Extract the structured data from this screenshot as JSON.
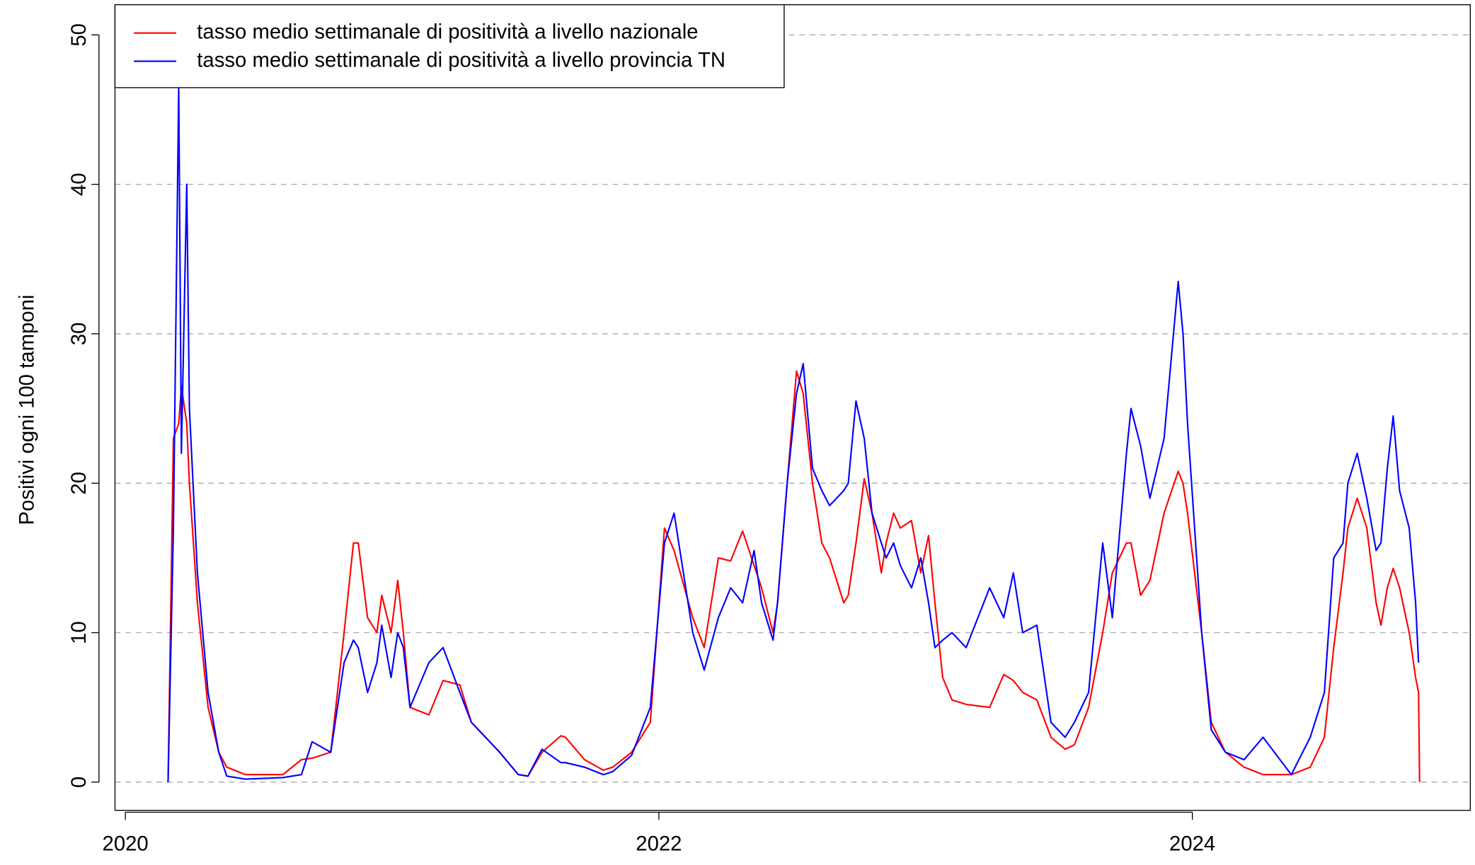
{
  "chart_data": {
    "type": "line",
    "y_label": "Positivi ogni 100 tamponi",
    "x": [
      2020.16,
      2020.18,
      2020.2,
      2020.21,
      2020.23,
      2020.24,
      2020.27,
      2020.31,
      2020.35,
      2020.38,
      2020.45,
      2020.59,
      2020.66,
      2020.7,
      2020.77,
      2020.82,
      2020.855,
      2020.873,
      2020.908,
      2020.943,
      2020.961,
      2020.996,
      2021.021,
      2021.042,
      2021.067,
      2021.138,
      2021.191,
      2021.254,
      2021.297,
      2021.403,
      2021.473,
      2021.509,
      2021.562,
      2021.633,
      2021.65,
      2021.721,
      2021.792,
      2021.827,
      2021.898,
      2021.968,
      2022.021,
      2022.057,
      2022.127,
      2022.17,
      2022.223,
      2022.269,
      2022.314,
      2022.357,
      2022.385,
      2022.428,
      2022.445,
      2022.481,
      2022.516,
      2022.541,
      2022.576,
      2022.611,
      2022.64,
      2022.693,
      2022.71,
      2022.739,
      2022.77,
      2022.799,
      2022.834,
      2022.852,
      2022.88,
      2022.905,
      2022.947,
      2022.982,
      2023.011,
      2023.035,
      2023.064,
      2023.099,
      2023.152,
      2023.24,
      2023.293,
      2023.329,
      2023.364,
      2023.417,
      2023.47,
      2023.523,
      2023.558,
      2023.611,
      2023.664,
      2023.7,
      2023.753,
      2023.77,
      2023.806,
      2023.841,
      2023.894,
      2023.947,
      2023.965,
      2023.982,
      2024.035,
      2024.071,
      2024.124,
      2024.194,
      2024.265,
      2024.371,
      2024.442,
      2024.495,
      2024.53,
      2024.565,
      2024.583,
      2024.618,
      2024.654,
      2024.689,
      2024.707,
      2024.731,
      2024.753,
      2024.777,
      2024.813,
      2024.837,
      2024.848,
      2024.852
    ],
    "series": [
      {
        "name": "tasso medio settimanale di positività a livello nazionale",
        "color": "#ff0000",
        "values": [
          0,
          23,
          24,
          26.5,
          24,
          20,
          12,
          5,
          2,
          1,
          0.5,
          0.5,
          1.5,
          1.6,
          2,
          10,
          16,
          16,
          11,
          10,
          12.5,
          10,
          13.5,
          10,
          5,
          4.5,
          6.8,
          6.5,
          4,
          2,
          0.5,
          0.4,
          2,
          3.1,
          3,
          1.5,
          0.8,
          1,
          2,
          4,
          17,
          15.5,
          11,
          9,
          15,
          14.8,
          16.8,
          14.5,
          13,
          10,
          12,
          20,
          27.5,
          26,
          20,
          16,
          15,
          12,
          12.5,
          16,
          20.3,
          18,
          14,
          16,
          18,
          17,
          17.5,
          14,
          16.5,
          12,
          7,
          5.5,
          5.2,
          5,
          7.2,
          6.8,
          6,
          5.5,
          3,
          2.2,
          2.5,
          5,
          10,
          14,
          16,
          16,
          12.5,
          13.5,
          18,
          20.8,
          20,
          18,
          10,
          4,
          2,
          1,
          0.5,
          0.5,
          1,
          3,
          9,
          14,
          17,
          19,
          17,
          12,
          10.5,
          13,
          14.3,
          13,
          10,
          7,
          6,
          0
        ]
      },
      {
        "name": "tasso medio settimanale di positività a livello provincia TN",
        "color": "#0000ff",
        "values": [
          0,
          17,
          46.5,
          22,
          40,
          25,
          14,
          6,
          2,
          0.4,
          0.2,
          0.3,
          0.5,
          2.7,
          2,
          8,
          9.5,
          9,
          6,
          8,
          10.5,
          7,
          10,
          9,
          5,
          8,
          9,
          6,
          4,
          2,
          0.5,
          0.4,
          2.2,
          1.3,
          1.3,
          1,
          0.5,
          0.7,
          1.8,
          5,
          16,
          18,
          10,
          7.5,
          11,
          13,
          12,
          15.5,
          12,
          9.5,
          12,
          20,
          26,
          28,
          21,
          19.5,
          18.5,
          19.5,
          20,
          25.5,
          23,
          18,
          16,
          15,
          16,
          14.5,
          13,
          15,
          12,
          9,
          9.5,
          10,
          9,
          13,
          11,
          14,
          10,
          10.5,
          4,
          3,
          4,
          6,
          16,
          11,
          22,
          25,
          22.5,
          19,
          23,
          33.5,
          30,
          24,
          10,
          3.5,
          2,
          1.5,
          3,
          0.5,
          3,
          6,
          15,
          16,
          20,
          22,
          19,
          15.5,
          16,
          21,
          24.5,
          19.5,
          17,
          12,
          8,
          null
        ]
      }
    ],
    "xlim": [
      2019.961,
      2025.042
    ],
    "xticks": [
      2020,
      2022,
      2024
    ],
    "ylim": [
      -1.89,
      52.02
    ],
    "yticks": [
      0,
      10,
      20,
      30,
      40,
      50
    ],
    "grid": true,
    "legend": "top-left"
  }
}
